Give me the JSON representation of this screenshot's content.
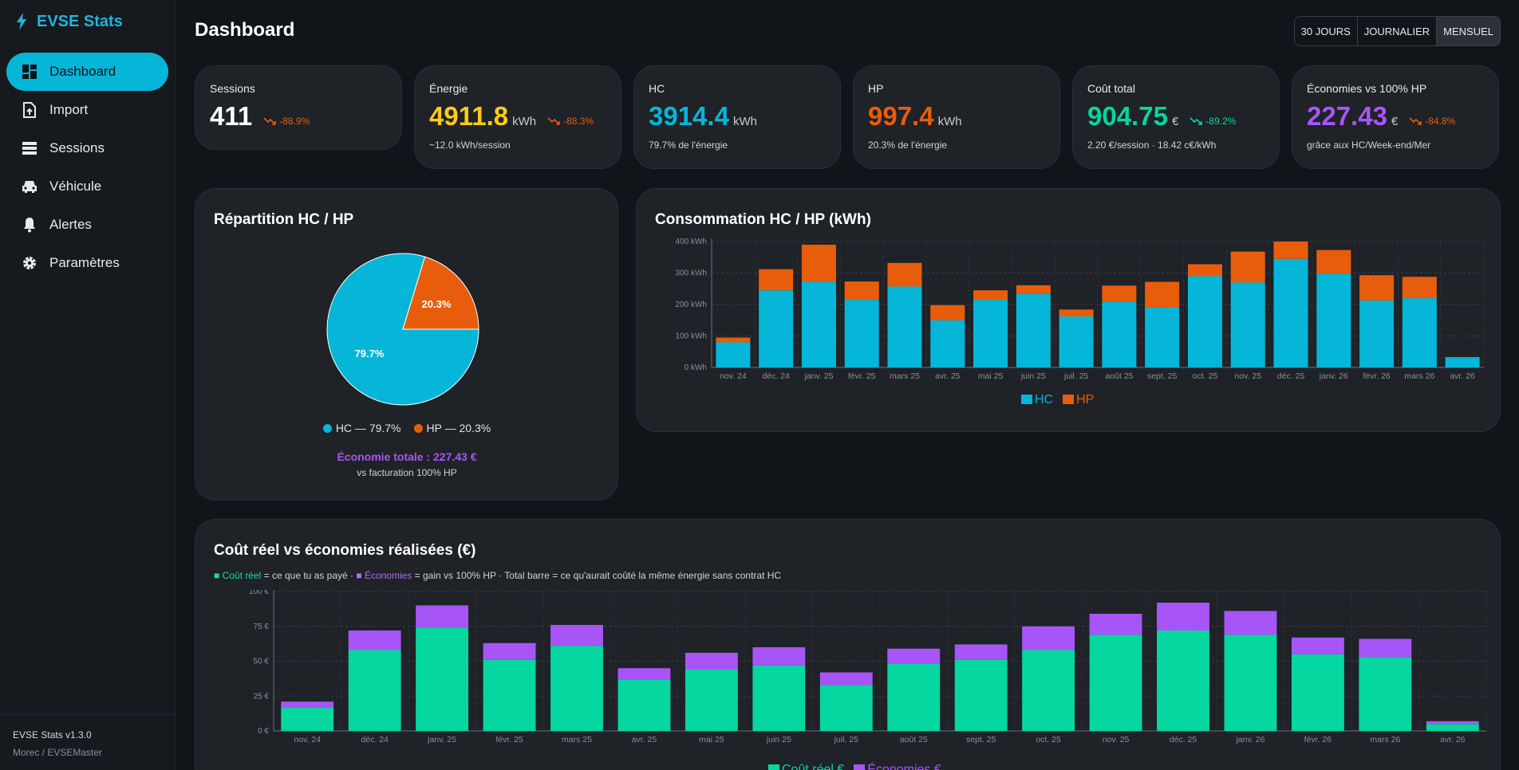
{
  "app": {
    "title": "EVSE Stats",
    "version": "EVSE Stats v1.3.0",
    "user": "Morec / EVSEMaster"
  },
  "colors": {
    "accent": "#06b6d8",
    "hc": "#06b6d8",
    "hp": "#e85d0c",
    "cost": "#06d6a0",
    "savings": "#a855f7",
    "energy": "#fbcb16"
  },
  "sidebar": {
    "items": [
      {
        "label": "Dashboard",
        "icon": "dashboard-icon",
        "active": true
      },
      {
        "label": "Import",
        "icon": "upload-file-icon"
      },
      {
        "label": "Sessions",
        "icon": "list-icon"
      },
      {
        "label": "Véhicule",
        "icon": "car-icon"
      },
      {
        "label": "Alertes",
        "icon": "bell-icon"
      },
      {
        "label": "Paramètres",
        "icon": "gear-icon"
      }
    ]
  },
  "header": {
    "title": "Dashboard",
    "range": [
      "30 JOURS",
      "JOURNALIER",
      "MENSUEL"
    ],
    "range_selected": "MENSUEL"
  },
  "kpis": [
    {
      "label": "Sessions",
      "value": "411",
      "unit": "",
      "trend": "-88.9%",
      "sub": ""
    },
    {
      "label": "Énergie",
      "value": "4911.8",
      "unit": "kWh",
      "trend": "-88.3%",
      "sub": "~12.0 kWh/session"
    },
    {
      "label": "HC",
      "value": "3914.4",
      "unit": "kWh",
      "trend": "",
      "sub": "79.7% de l'énergie"
    },
    {
      "label": "HP",
      "value": "997.4",
      "unit": "kWh",
      "trend": "",
      "sub": "20.3% de l'énergie"
    },
    {
      "label": "Coût total",
      "value": "904.75",
      "unit": "€",
      "trend": "-89.2%",
      "sub": "2.20 €/session · 18.42 c€/kWh"
    },
    {
      "label": "Économies vs 100% HP",
      "value": "227.43",
      "unit": "€",
      "trend": "-84.8%",
      "sub": "grâce aux HC/Week-end/Mer"
    }
  ],
  "pie": {
    "title": "Répartition HC / HP",
    "legend_hc": "HC — 79.7%",
    "legend_hp": "HP — 20.3%",
    "saving": "Économie totale : 227.43 €",
    "saving_sub": "vs facturation 100% HP"
  },
  "consumption": {
    "title": "Consommation HC / HP (kWh)",
    "legend": [
      "HC",
      "HP"
    ]
  },
  "cost": {
    "title": "Coût réel vs économies réalisées (€)",
    "note_cost": "■ Coût réel",
    "note_cost_text": " = ce que tu as payé  · ",
    "note_savings": "■ Économies",
    "note_savings_text": " = gain vs 100% HP  ·  Total barre = ce qu'aurait coûté la même énergie sans contrat HC",
    "legend": [
      "Coût réel €",
      "Économies €"
    ]
  },
  "chart_data": [
    {
      "type": "pie",
      "title": "Répartition HC / HP",
      "categories": [
        "HC",
        "HP"
      ],
      "values": [
        79.7,
        20.3
      ],
      "labels": [
        "79.7%",
        "20.3%"
      ]
    },
    {
      "type": "bar",
      "stacked": true,
      "title": "Consommation HC / HP (kWh)",
      "categories": [
        "nov. 24",
        "déc. 24",
        "janv. 25",
        "févr. 25",
        "mars 25",
        "avr. 25",
        "mai 25",
        "juin 25",
        "juil. 25",
        "août 25",
        "sept. 25",
        "oct. 25",
        "nov. 25",
        "déc. 25",
        "janv. 26",
        "févr. 26",
        "mars 26",
        "avr. 26"
      ],
      "series": [
        {
          "name": "HC",
          "values": [
            80,
            245,
            272,
            215,
            257,
            150,
            215,
            233,
            162,
            208,
            190,
            290,
            270,
            345,
            298,
            213,
            220,
            33
          ]
        },
        {
          "name": "HP",
          "values": [
            15,
            67,
            118,
            58,
            75,
            48,
            30,
            28,
            22,
            52,
            82,
            38,
            98,
            55,
            75,
            80,
            68,
            0
          ]
        }
      ],
      "ylim": [
        0,
        400
      ],
      "yticks": [
        "0 kWh",
        "100 kWh",
        "200 kWh",
        "300 kWh",
        "400 kWh"
      ],
      "legend_position": "bottom",
      "grid": true
    },
    {
      "type": "bar",
      "stacked": true,
      "title": "Coût réel vs économies réalisées (€)",
      "categories": [
        "nov. 24",
        "déc. 24",
        "janv. 25",
        "févr. 25",
        "mars 25",
        "avr. 25",
        "mai 25",
        "juin 25",
        "juil. 25",
        "août 25",
        "sept. 25",
        "oct. 25",
        "nov. 25",
        "déc. 25",
        "janv. 26",
        "févr. 26",
        "mars 26",
        "avr. 26"
      ],
      "series": [
        {
          "name": "Coût réel €",
          "values": [
            17,
            58,
            74,
            51,
            61,
            37,
            44,
            47,
            33,
            48,
            51,
            58,
            69,
            72,
            69,
            55,
            53,
            5
          ]
        },
        {
          "name": "Économies €",
          "values": [
            4,
            14,
            16,
            12,
            15,
            8,
            12,
            13,
            9,
            11,
            11,
            17,
            15,
            20,
            17,
            12,
            13,
            2
          ]
        }
      ],
      "ylim": [
        0,
        100
      ],
      "yticks": [
        "0 €",
        "25 €",
        "50 €",
        "75 €",
        "100 €"
      ],
      "legend_position": "bottom",
      "grid": true
    }
  ]
}
